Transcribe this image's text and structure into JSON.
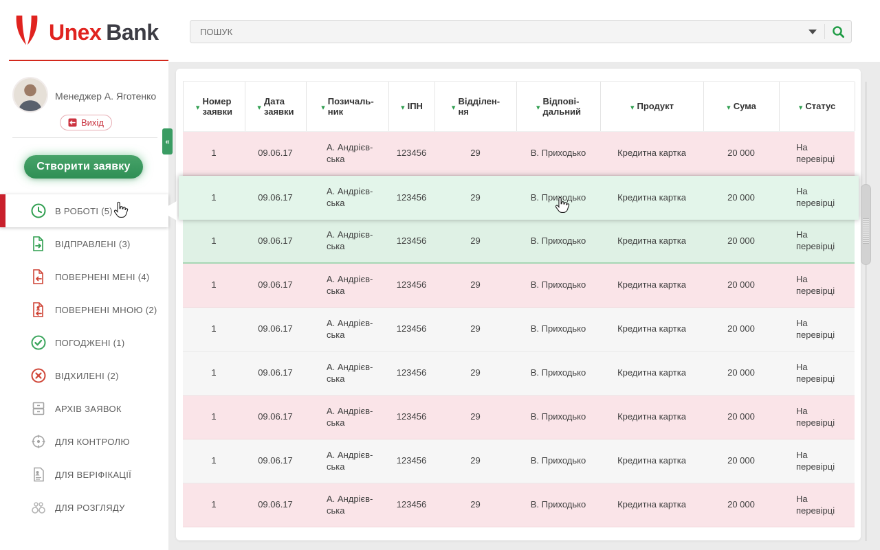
{
  "header": {
    "logo_primary": "Unex",
    "logo_secondary": "Bank",
    "search_placeholder": "ПОШУК"
  },
  "sidebar": {
    "profile_name": "Менеджер А. Яготенко",
    "logout_label": "Вихід",
    "create_button": "Створити заявку",
    "menu": [
      {
        "label": "В РОБОТІ (5)",
        "icon": "clock-icon",
        "active": true
      },
      {
        "label": "ВІДПРАВЛЕНІ (3)",
        "icon": "document-sent-icon",
        "active": false
      },
      {
        "label": "ПОВЕРНЕНІ МЕНІ (4)",
        "icon": "document-returned-icon",
        "active": false
      },
      {
        "label": "ПОВЕРНЕНІ МНОЮ (2)",
        "icon": "document-returned-by-me-icon",
        "active": false
      },
      {
        "label": "ПОГОДЖЕНІ (1)",
        "icon": "check-circle-icon",
        "active": false
      },
      {
        "label": "ВІДХИЛЕНІ (2)",
        "icon": "cross-circle-icon",
        "active": false
      },
      {
        "label": "АРХІВ ЗАЯВОК",
        "icon": "archive-icon",
        "active": false
      },
      {
        "label": "ДЛЯ КОНТРОЛЮ",
        "icon": "target-icon",
        "active": false
      },
      {
        "label": "ДЛЯ ВЕРІФІКАЦІЇ",
        "icon": "verification-document-icon",
        "active": false
      },
      {
        "label": "ДЛЯ РОЗГЛЯДУ",
        "icon": "binoculars-icon",
        "active": false
      }
    ]
  },
  "table": {
    "columns": [
      {
        "key": "number",
        "label": "Номер\nзаявки"
      },
      {
        "key": "date",
        "label": "Дата\nзаявки"
      },
      {
        "key": "borrower",
        "label": "Позичаль-\nник"
      },
      {
        "key": "ipn",
        "label": "ІПН"
      },
      {
        "key": "branch",
        "label": "Відділен-\nня"
      },
      {
        "key": "responsible",
        "label": "Відпові-\nдальний"
      },
      {
        "key": "product",
        "label": "Продукт"
      },
      {
        "key": "sum",
        "label": "Сума"
      },
      {
        "key": "status",
        "label": "Статус"
      }
    ],
    "rows": [
      {
        "number": "1",
        "date": "09.06.17",
        "borrower": "А. Андрієв-\nська",
        "ipn": "123456",
        "branch": "29",
        "responsible": "В. Приходько",
        "product": "Кредитна картка",
        "sum": "20 000",
        "status": "На\nперевірці",
        "variant": "pink"
      },
      {
        "number": "1",
        "date": "09.06.17",
        "borrower": "А. Андрієв-\nська",
        "ipn": "123456",
        "branch": "29",
        "responsible": "В. Приходько",
        "product": "Кредитна картка",
        "sum": "20 000",
        "status": "На\nперевірці",
        "variant": "hover"
      },
      {
        "number": "1",
        "date": "09.06.17",
        "borrower": "А. Андрієв-\nська",
        "ipn": "123456",
        "branch": "29",
        "responsible": "В. Приходько",
        "product": "Кредитна картка",
        "sum": "20 000",
        "status": "На\nперевірці",
        "variant": "green"
      },
      {
        "number": "1",
        "date": "09.06.17",
        "borrower": "А. Андрієв-\nська",
        "ipn": "123456",
        "branch": "29",
        "responsible": "В. Приходько",
        "product": "Кредитна картка",
        "sum": "20 000",
        "status": "На\nперевірці",
        "variant": "pink"
      },
      {
        "number": "1",
        "date": "09.06.17",
        "borrower": "А. Андрієв-\nська",
        "ipn": "123456",
        "branch": "29",
        "responsible": "В. Приходько",
        "product": "Кредитна картка",
        "sum": "20 000",
        "status": "На\nперевірці",
        "variant": "plain"
      },
      {
        "number": "1",
        "date": "09.06.17",
        "borrower": "А. Андрієв-\nська",
        "ipn": "123456",
        "branch": "29",
        "responsible": "В. Приходько",
        "product": "Кредитна картка",
        "sum": "20 000",
        "status": "На\nперевірці",
        "variant": "plain"
      },
      {
        "number": "1",
        "date": "09.06.17",
        "borrower": "А. Андрієв-\nська",
        "ipn": "123456",
        "branch": "29",
        "responsible": "В. Приходько",
        "product": "Кредитна картка",
        "sum": "20 000",
        "status": "На\nперевірці",
        "variant": "pink"
      },
      {
        "number": "1",
        "date": "09.06.17",
        "borrower": "А. Андрієв-\nська",
        "ipn": "123456",
        "branch": "29",
        "responsible": "В. Приходько",
        "product": "Кредитна картка",
        "sum": "20 000",
        "status": "На\nперевірці",
        "variant": "plain"
      },
      {
        "number": "1",
        "date": "09.06.17",
        "borrower": "А. Андрієв-\nська",
        "ipn": "123456",
        "branch": "29",
        "responsible": "В. Приходько",
        "product": "Кредитна картка",
        "sum": "20 000",
        "status": "На\nперевірці",
        "variant": "pink"
      }
    ]
  },
  "colors": {
    "brand_red": "#e0231f",
    "accent_green": "#2f9e4f",
    "button_green": "#3a9c63",
    "active_bar_red": "#c9202c",
    "row_pink": "#fae4e8",
    "row_mint_hover": "#e3f5ea",
    "row_mint_selected": "#dff1e5",
    "row_plain": "#f6f6f6",
    "content_background": "#ebebeb"
  }
}
